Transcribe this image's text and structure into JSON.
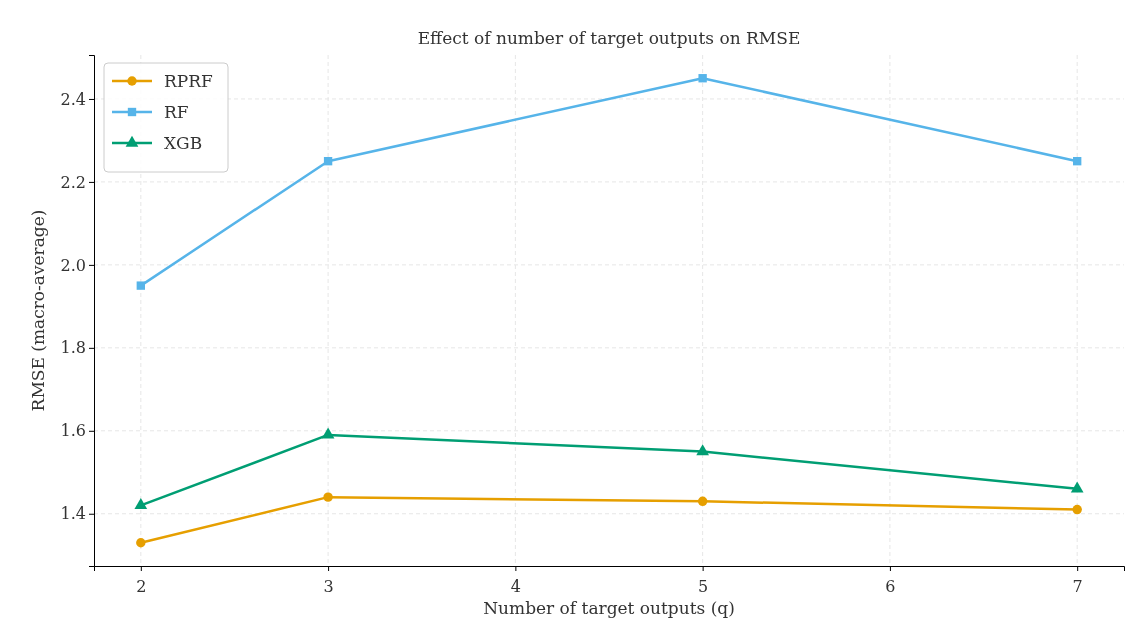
{
  "chart_data": {
    "type": "line",
    "title": "Effect of number of target outputs on RMSE",
    "xlabel": "Number of target outputs (q)",
    "ylabel": "RMSE (macro-average)",
    "x": [
      2,
      3,
      5,
      7
    ],
    "series": [
      {
        "name": "RPRF",
        "color": "#e69f00",
        "marker": "circle",
        "values": [
          1.33,
          1.44,
          1.43,
          1.41
        ]
      },
      {
        "name": "RF",
        "color": "#56b4e9",
        "marker": "square",
        "values": [
          1.95,
          2.25,
          2.45,
          2.25
        ]
      },
      {
        "name": "XGB",
        "color": "#009e73",
        "marker": "triangle",
        "values": [
          1.42,
          1.59,
          1.55,
          1.46
        ]
      }
    ],
    "xlim": [
      1.75,
      7.25
    ],
    "xticks": [
      2,
      3,
      4,
      5,
      6,
      7
    ],
    "ylim": [
      1.274,
      2.506
    ],
    "yticks": [
      1.4,
      1.6,
      1.8,
      {
        "value": 2,
        "label": "2.0"
      },
      2.2,
      2.4
    ],
    "grid": true,
    "legend": "top left",
    "line_style": "solid"
  }
}
